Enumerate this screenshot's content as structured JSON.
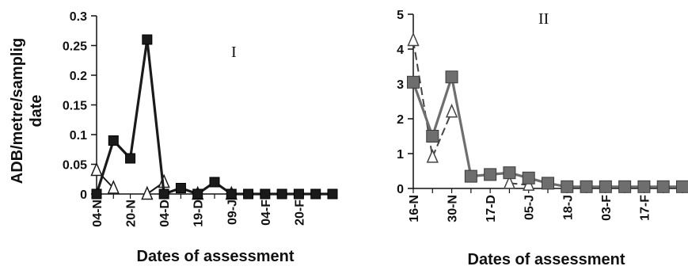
{
  "chart_data": [
    {
      "type": "line",
      "panel_label": "I",
      "ylabel_lines": [
        "ADB/metre/samplig",
        "date"
      ],
      "xlabel": "Dates of assessment",
      "ylim": [
        0,
        0.3
      ],
      "y_ticks": [
        "0",
        "0.05",
        "0.1",
        "0.15",
        "0.2",
        "0.25",
        "0.3"
      ],
      "x_tick_labels": [
        "04-N",
        "20-N",
        "04-D",
        "19-D",
        "09-J",
        "04-F",
        "20-F"
      ],
      "grid": false,
      "series": [
        {
          "marker": "filled-square",
          "color": "#1a1a1a",
          "values": [
            0,
            0.09,
            0.06,
            0.26,
            0,
            0.01,
            0,
            0.02,
            0,
            0,
            0,
            0,
            0,
            0,
            0
          ]
        },
        {
          "marker": "open-triangle",
          "color": "#1a1a1a",
          "values": [
            0.04,
            0.01,
            null,
            0,
            0.02,
            null,
            0,
            null,
            0,
            null,
            null,
            null,
            null,
            null,
            null
          ]
        }
      ]
    },
    {
      "type": "line",
      "panel_label": "II",
      "ylabel_lines": [],
      "xlabel": "Dates of assessment",
      "ylim": [
        0,
        5
      ],
      "y_ticks": [
        "0",
        "1",
        "2",
        "3",
        "4",
        "5"
      ],
      "x_tick_labels": [
        "16-N",
        "30-N",
        "17-D",
        "05-J",
        "18-J",
        "03-F",
        "17-F"
      ],
      "grid": false,
      "series": [
        {
          "marker": "filled-square",
          "color": "#6e6e6e",
          "values": [
            3.05,
            1.5,
            3.2,
            0.35,
            0.4,
            0.45,
            0.3,
            0.15,
            0.05,
            0.05,
            0.05,
            0.05,
            0.05,
            0.05,
            0.05
          ]
        },
        {
          "marker": "open-triangle",
          "color": "#444444",
          "values": [
            4.25,
            0.9,
            2.2,
            null,
            null,
            0.15,
            0.1,
            null,
            null,
            null,
            null,
            null,
            null,
            null,
            null
          ]
        }
      ]
    }
  ]
}
